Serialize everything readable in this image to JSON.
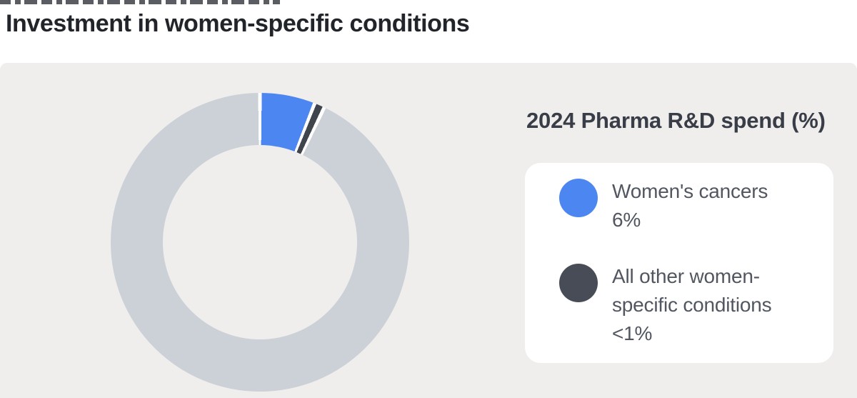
{
  "page": {
    "title": "Investment in women-specific conditions"
  },
  "chart_data": {
    "type": "pie",
    "subtype": "donut",
    "title": "2024 Pharma R&D spend (%)",
    "unit": "%",
    "slices": [
      {
        "label": "Women's cancers",
        "value": 6,
        "value_label": "6%",
        "color": "#4c86f0"
      },
      {
        "label": "All other women-specific conditions",
        "value": 0.8,
        "value_label": "<1%",
        "color": "#3f444d"
      },
      {
        "label": "",
        "value": 93.2,
        "value_label": "",
        "color": "#ccd1d7"
      }
    ],
    "legend_position": "right",
    "start_angle_deg": 0,
    "render": {
      "slice_gap_deg": 1.4,
      "min_slice_deg": 4,
      "separator_color": "#fdfdfd"
    }
  },
  "legend": {
    "title": "2024 Pharma R&D spend (%)",
    "items": [
      {
        "label": "Women's cancers",
        "value": "6%",
        "color": "#4c86f0"
      },
      {
        "label": "All other women-specific conditions",
        "value": "<1%",
        "color": "#474c56"
      }
    ]
  },
  "colors": {
    "panel_bg": "#efeeec",
    "card_bg": "#ffffff",
    "ring_rest": "#ccd1d7",
    "accent_blue": "#4c86f0",
    "dark_slice": "#3f444d",
    "title_text": "#212429",
    "legend_title_text": "#383d47",
    "legend_body_text": "#515660"
  }
}
